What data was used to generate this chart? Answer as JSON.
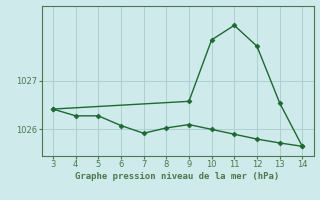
{
  "line1_x": [
    3,
    9,
    10,
    11,
    12,
    13,
    14
  ],
  "line1_y": [
    1026.42,
    1026.58,
    1027.85,
    1028.15,
    1027.72,
    1026.55,
    1025.65
  ],
  "line2_x": [
    3,
    4,
    5,
    6,
    7,
    8,
    9,
    10,
    11,
    12,
    13,
    14
  ],
  "line2_y": [
    1026.42,
    1026.28,
    1026.28,
    1026.08,
    1025.92,
    1026.03,
    1026.1,
    1026.0,
    1025.9,
    1025.8,
    1025.72,
    1025.65
  ],
  "line_color": "#1a6b2e",
  "marker": "D",
  "markersize": 2.5,
  "linewidth": 1.0,
  "xlabel": "Graphe pression niveau de la mer (hPa)",
  "xlabel_fontsize": 6.5,
  "ylabel_ticks": [
    1026,
    1027
  ],
  "xlim": [
    2.5,
    14.5
  ],
  "ylim": [
    1025.45,
    1028.55
  ],
  "xticks": [
    3,
    4,
    5,
    6,
    7,
    8,
    9,
    10,
    11,
    12,
    13,
    14
  ],
  "background_color": "#ceeaea",
  "grid_color": "#aed0d0",
  "axes_color": "#4a7a4a",
  "spine_color": "#4a7a4a"
}
